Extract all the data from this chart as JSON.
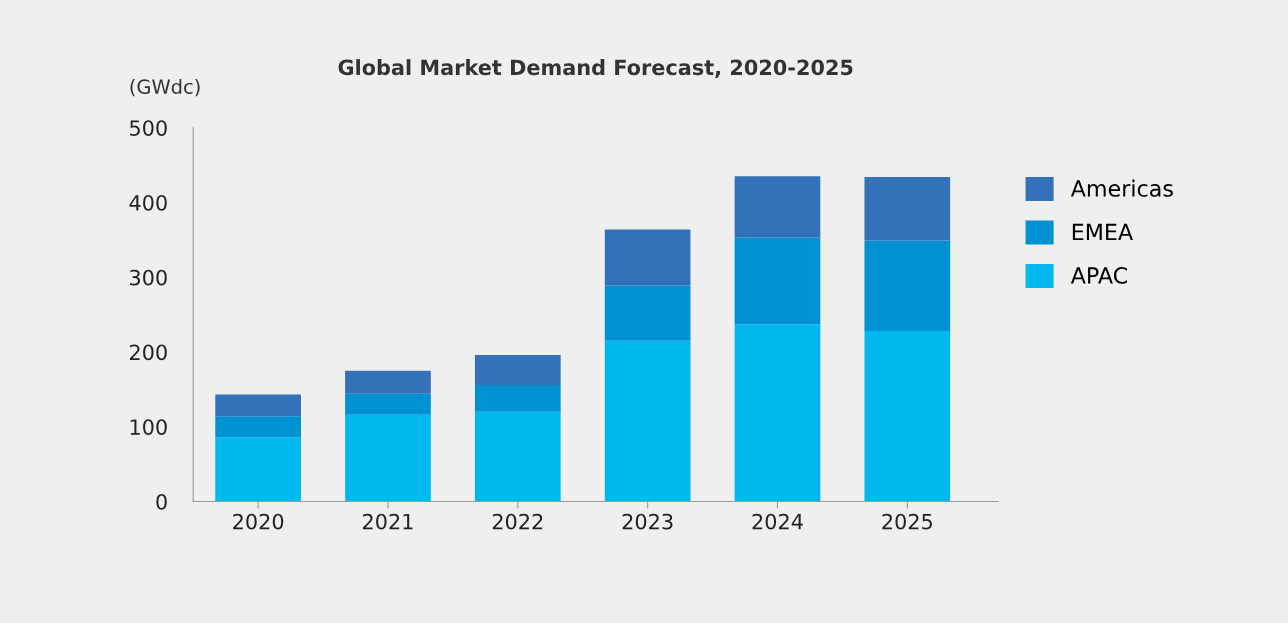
{
  "chart_data": {
    "type": "bar",
    "title": "Global Market Demand Forecast, 2020-2025",
    "ylabel": "(GWdc)",
    "categories": [
      "2020",
      "2021",
      "2022",
      "2023",
      "2024",
      "2025"
    ],
    "series": [
      {
        "name": "APAC",
        "color": "#00b8ee",
        "values": [
          86,
          116,
          120,
          215,
          237,
          228
        ]
      },
      {
        "name": "EMEA",
        "color": "#0091d2",
        "values": [
          28,
          28,
          36,
          74,
          116,
          121
        ]
      },
      {
        "name": "Americas",
        "color": "#3371b9",
        "values": [
          29,
          31,
          40,
          75,
          82,
          85
        ]
      }
    ],
    "stacked": true,
    "ylim": [
      0,
      500
    ],
    "yticks": [
      0,
      100,
      200,
      300,
      400,
      500
    ],
    "grid": false,
    "legend": "right"
  }
}
